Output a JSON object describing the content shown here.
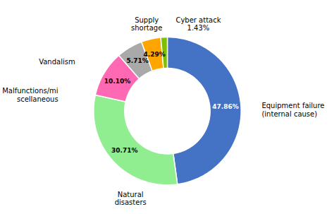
{
  "chart_data": {
    "type": "pie",
    "categories": [
      "Equipment failure\n(internal cause)",
      "Natural\ndisasters",
      "Malfunctions/mi\nscellaneous",
      "Vandalism",
      "Supply\nshortage",
      "Cyber attack\n1.43%"
    ],
    "values": [
      47.86,
      30.71,
      10.1,
      5.71,
      4.29,
      1.43
    ],
    "colors": [
      "#4472C4",
      "#90EE90",
      "#FF69B4",
      "#A9A9A9",
      "#FFA500",
      "#7FBF00"
    ],
    "data_labels": true,
    "value_labels": [
      "47.86%",
      "30.71%",
      "10.10%",
      "5.71%",
      "4.29%",
      null
    ]
  }
}
